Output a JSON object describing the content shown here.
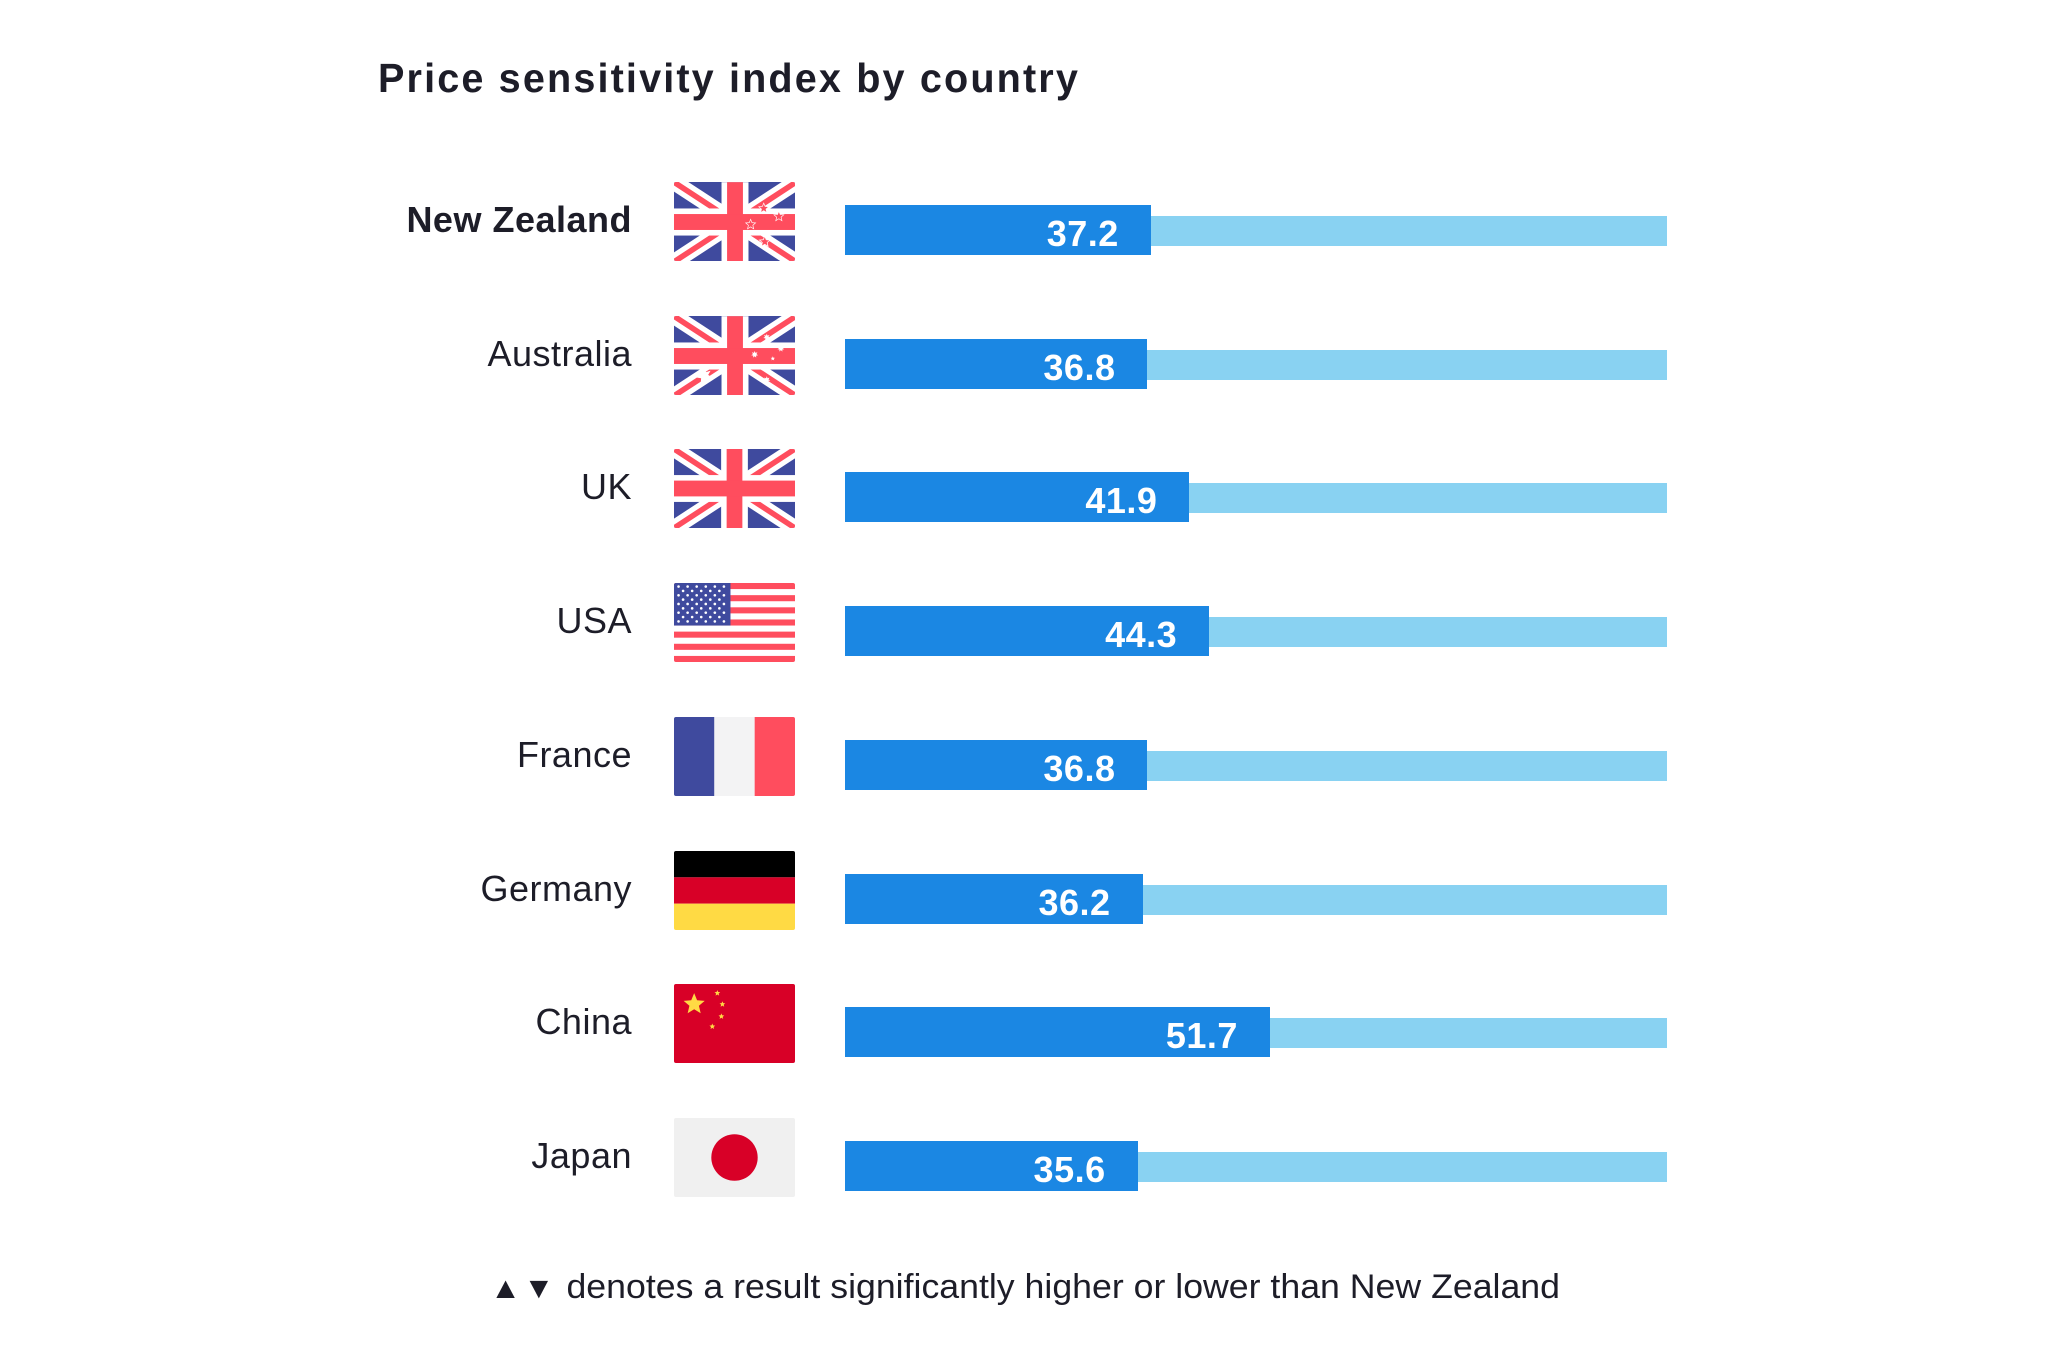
{
  "chart_data": {
    "type": "bar",
    "orientation": "horizontal",
    "title": "Price sensitivity index by country",
    "categories": [
      "New Zealand",
      "Australia",
      "UK",
      "USA",
      "France",
      "Germany",
      "China",
      "Japan"
    ],
    "values": [
      37.2,
      36.8,
      41.9,
      44.3,
      36.8,
      36.2,
      51.7,
      35.6
    ],
    "highlight_category": "New Zealand",
    "xlim": [
      0,
      100
    ],
    "xlabel": "",
    "ylabel": "",
    "grid": false,
    "legend": null,
    "data_labels": [
      "37.2",
      "36.8",
      "41.9",
      "44.3",
      "36.8",
      "36.2",
      "51.7",
      "35.6"
    ],
    "flags": [
      "new-zealand-flag",
      "australia-flag",
      "uk-flag",
      "usa-flag",
      "france-flag",
      "germany-flag",
      "china-flag",
      "japan-flag"
    ],
    "footnote": {
      "up_symbol": "▲",
      "down_symbol": "▼",
      "text": "denotes a result significantly higher or lower than New Zealand"
    },
    "colors": {
      "bar": "#1b87e3",
      "track": "#89d2f2",
      "text": "#1d1d28",
      "value_text": "#ffffff"
    }
  }
}
